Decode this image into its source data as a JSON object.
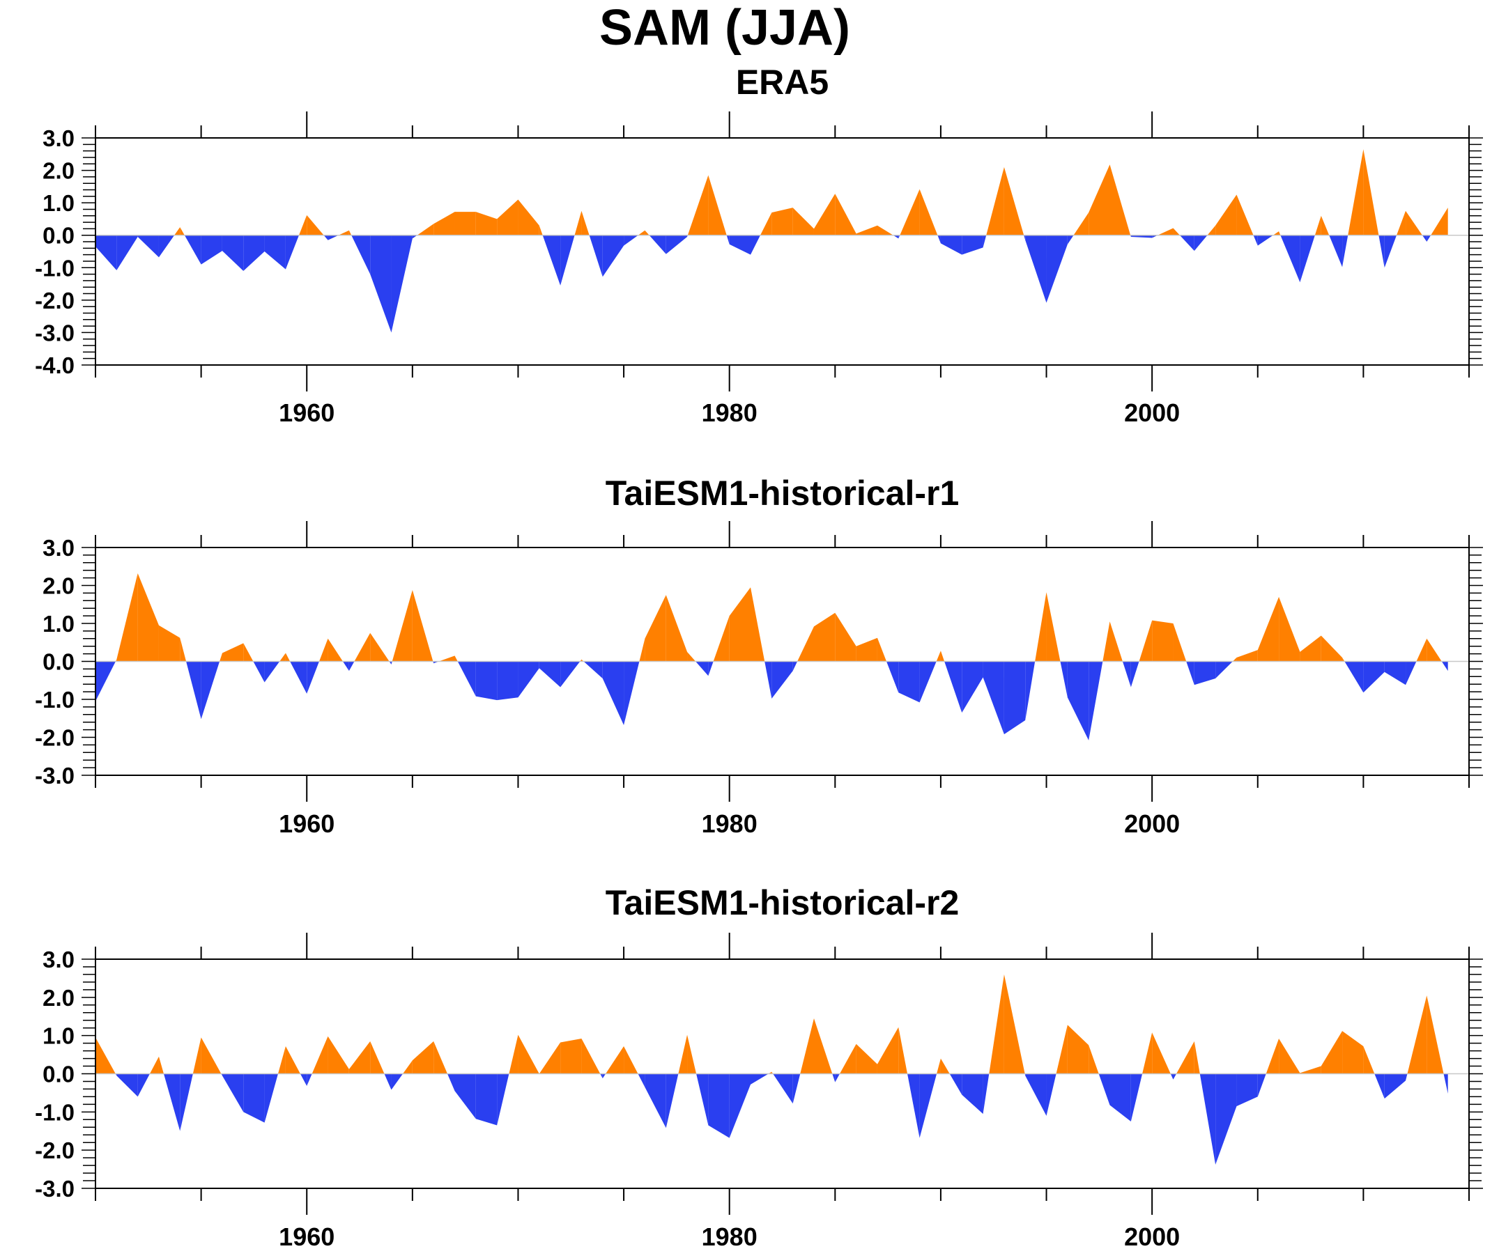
{
  "figure": {
    "title": "SAM (JJA)"
  },
  "chart_data": [
    {
      "type": "area",
      "title": "ERA5",
      "xlabel": "",
      "ylabel": "",
      "xlim": [
        1950,
        2015
      ],
      "ylim": [
        -4.0,
        3.0
      ],
      "x_major_ticks": [
        1960,
        1980,
        2000
      ],
      "x_tick_labels": [
        "1960",
        "1980",
        "2000"
      ],
      "y_ticks": [
        3.0,
        2.0,
        1.0,
        0.0,
        -1.0,
        -2.0,
        -3.0,
        -4.0
      ],
      "y_tick_labels": [
        "3.0",
        "2.0",
        "1.0",
        "0.0",
        "-1.0",
        "-2.0",
        "-3.0",
        "-4.0"
      ],
      "grid": false,
      "colors": {
        "positive": "#ff8000",
        "negative": "#2a3ff0"
      },
      "x": [
        1950,
        1951,
        1952,
        1953,
        1954,
        1955,
        1956,
        1957,
        1958,
        1959,
        1960,
        1961,
        1962,
        1963,
        1964,
        1965,
        1966,
        1967,
        1968,
        1969,
        1970,
        1971,
        1972,
        1973,
        1974,
        1975,
        1976,
        1977,
        1978,
        1979,
        1980,
        1981,
        1982,
        1983,
        1984,
        1985,
        1986,
        1987,
        1988,
        1989,
        1990,
        1991,
        1992,
        1993,
        1994,
        1995,
        1996,
        1997,
        1998,
        1999,
        2000,
        2001,
        2002,
        2003,
        2004,
        2005,
        2006,
        2007,
        2008,
        2009,
        2010,
        2011,
        2012,
        2013,
        2014
      ],
      "values": [
        -0.35,
        -1.08,
        -0.05,
        -0.68,
        0.25,
        -0.9,
        -0.48,
        -1.1,
        -0.5,
        -1.05,
        0.62,
        -0.15,
        0.15,
        -1.2,
        -3.0,
        -0.1,
        0.35,
        0.72,
        0.72,
        0.5,
        1.1,
        0.3,
        -1.55,
        0.75,
        -1.28,
        -0.32,
        0.15,
        -0.58,
        -0.05,
        1.85,
        -0.28,
        -0.6,
        0.7,
        0.85,
        0.2,
        1.28,
        0.05,
        0.3,
        -0.1,
        1.42,
        -0.25,
        -0.6,
        -0.38,
        2.1,
        -0.15,
        -2.08,
        -0.28,
        0.7,
        2.18,
        -0.05,
        -0.08,
        0.22,
        -0.48,
        0.3,
        1.25,
        -0.32,
        0.12,
        -1.45,
        0.6,
        -0.98,
        2.65,
        -1.0,
        0.75,
        -0.2,
        0.85
      ]
    },
    {
      "type": "area",
      "title": "TaiESM1-historical-r1",
      "xlabel": "",
      "ylabel": "",
      "xlim": [
        1950,
        2015
      ],
      "ylim": [
        -3.0,
        3.0
      ],
      "x_major_ticks": [
        1960,
        1980,
        2000
      ],
      "x_tick_labels": [
        "1960",
        "1980",
        "2000"
      ],
      "y_ticks": [
        3.0,
        2.0,
        1.0,
        0.0,
        -1.0,
        -2.0,
        -3.0
      ],
      "y_tick_labels": [
        "3.0",
        "2.0",
        "1.0",
        "0.0",
        "-1.0",
        "-2.0",
        "-3.0"
      ],
      "grid": false,
      "colors": {
        "positive": "#ff8000",
        "negative": "#2a3ff0"
      },
      "x": [
        1950,
        1951,
        1952,
        1953,
        1954,
        1955,
        1956,
        1957,
        1958,
        1959,
        1960,
        1961,
        1962,
        1963,
        1964,
        1965,
        1966,
        1967,
        1968,
        1969,
        1970,
        1971,
        1972,
        1973,
        1974,
        1975,
        1976,
        1977,
        1978,
        1979,
        1980,
        1981,
        1982,
        1983,
        1984,
        1985,
        1986,
        1987,
        1988,
        1989,
        1990,
        1991,
        1992,
        1993,
        1994,
        1995,
        1996,
        1997,
        1998,
        1999,
        2000,
        2001,
        2002,
        2003,
        2004,
        2005,
        2006,
        2007,
        2008,
        2009,
        2010,
        2011,
        2012,
        2013,
        2014
      ],
      "values": [
        -1.05,
        0.05,
        2.32,
        0.95,
        0.62,
        -1.52,
        0.22,
        0.48,
        -0.55,
        0.22,
        -0.85,
        0.6,
        -0.25,
        0.75,
        -0.08,
        1.88,
        -0.05,
        0.15,
        -0.92,
        -1.02,
        -0.95,
        -0.18,
        -0.68,
        0.05,
        -0.45,
        -1.68,
        0.6,
        1.75,
        0.25,
        -0.38,
        1.2,
        1.95,
        -0.98,
        -0.25,
        0.92,
        1.28,
        0.4,
        0.62,
        -0.82,
        -1.08,
        0.28,
        -1.35,
        -0.42,
        -1.92,
        -1.55,
        1.82,
        -0.95,
        -2.08,
        1.05,
        -0.68,
        1.08,
        1.0,
        -0.62,
        -0.45,
        0.1,
        0.3,
        1.7,
        0.25,
        0.68,
        0.1,
        -0.82,
        -0.28,
        -0.62,
        0.6,
        -0.25
      ]
    },
    {
      "type": "area",
      "title": "TaiESM1-historical-r2",
      "xlabel": "",
      "ylabel": "",
      "xlim": [
        1950,
        2015
      ],
      "ylim": [
        -3.0,
        3.0
      ],
      "x_major_ticks": [
        1960,
        1980,
        2000
      ],
      "x_tick_labels": [
        "1960",
        "1980",
        "2000"
      ],
      "y_ticks": [
        3.0,
        2.0,
        1.0,
        0.0,
        -1.0,
        -2.0,
        -3.0
      ],
      "y_tick_labels": [
        "3.0",
        "2.0",
        "1.0",
        "0.0",
        "-1.0",
        "-2.0",
        "-3.0"
      ],
      "grid": false,
      "colors": {
        "positive": "#ff8000",
        "negative": "#2a3ff0"
      },
      "x": [
        1950,
        1951,
        1952,
        1953,
        1954,
        1955,
        1956,
        1957,
        1958,
        1959,
        1960,
        1961,
        1962,
        1963,
        1964,
        1965,
        1966,
        1967,
        1968,
        1969,
        1970,
        1971,
        1972,
        1973,
        1974,
        1975,
        1976,
        1977,
        1978,
        1979,
        1980,
        1981,
        1982,
        1983,
        1984,
        1985,
        1986,
        1987,
        1988,
        1989,
        1990,
        1991,
        1992,
        1993,
        1994,
        1995,
        1996,
        1997,
        1998,
        1999,
        2000,
        2001,
        2002,
        2003,
        2004,
        2005,
        2006,
        2007,
        2008,
        2009,
        2010,
        2011,
        2012,
        2013,
        2014
      ],
      "values": [
        0.95,
        -0.05,
        -0.6,
        0.45,
        -1.5,
        0.95,
        -0.05,
        -1.0,
        -1.28,
        0.72,
        -0.32,
        0.98,
        0.12,
        0.85,
        -0.42,
        0.35,
        0.85,
        -0.45,
        -1.18,
        -1.35,
        1.02,
        0.0,
        0.82,
        0.92,
        -0.12,
        0.72,
        -0.35,
        -1.42,
        1.02,
        -1.35,
        -1.68,
        -0.28,
        0.05,
        -0.78,
        1.45,
        -0.22,
        0.78,
        0.25,
        1.22,
        -1.68,
        0.4,
        -0.55,
        -1.05,
        2.6,
        -0.05,
        -1.1,
        1.28,
        0.75,
        -0.82,
        -1.25,
        1.08,
        -0.15,
        0.85,
        -2.38,
        -0.85,
        -0.6,
        0.92,
        0.02,
        0.2,
        1.12,
        0.72,
        -0.65,
        -0.18,
        2.05,
        -0.52
      ]
    }
  ]
}
